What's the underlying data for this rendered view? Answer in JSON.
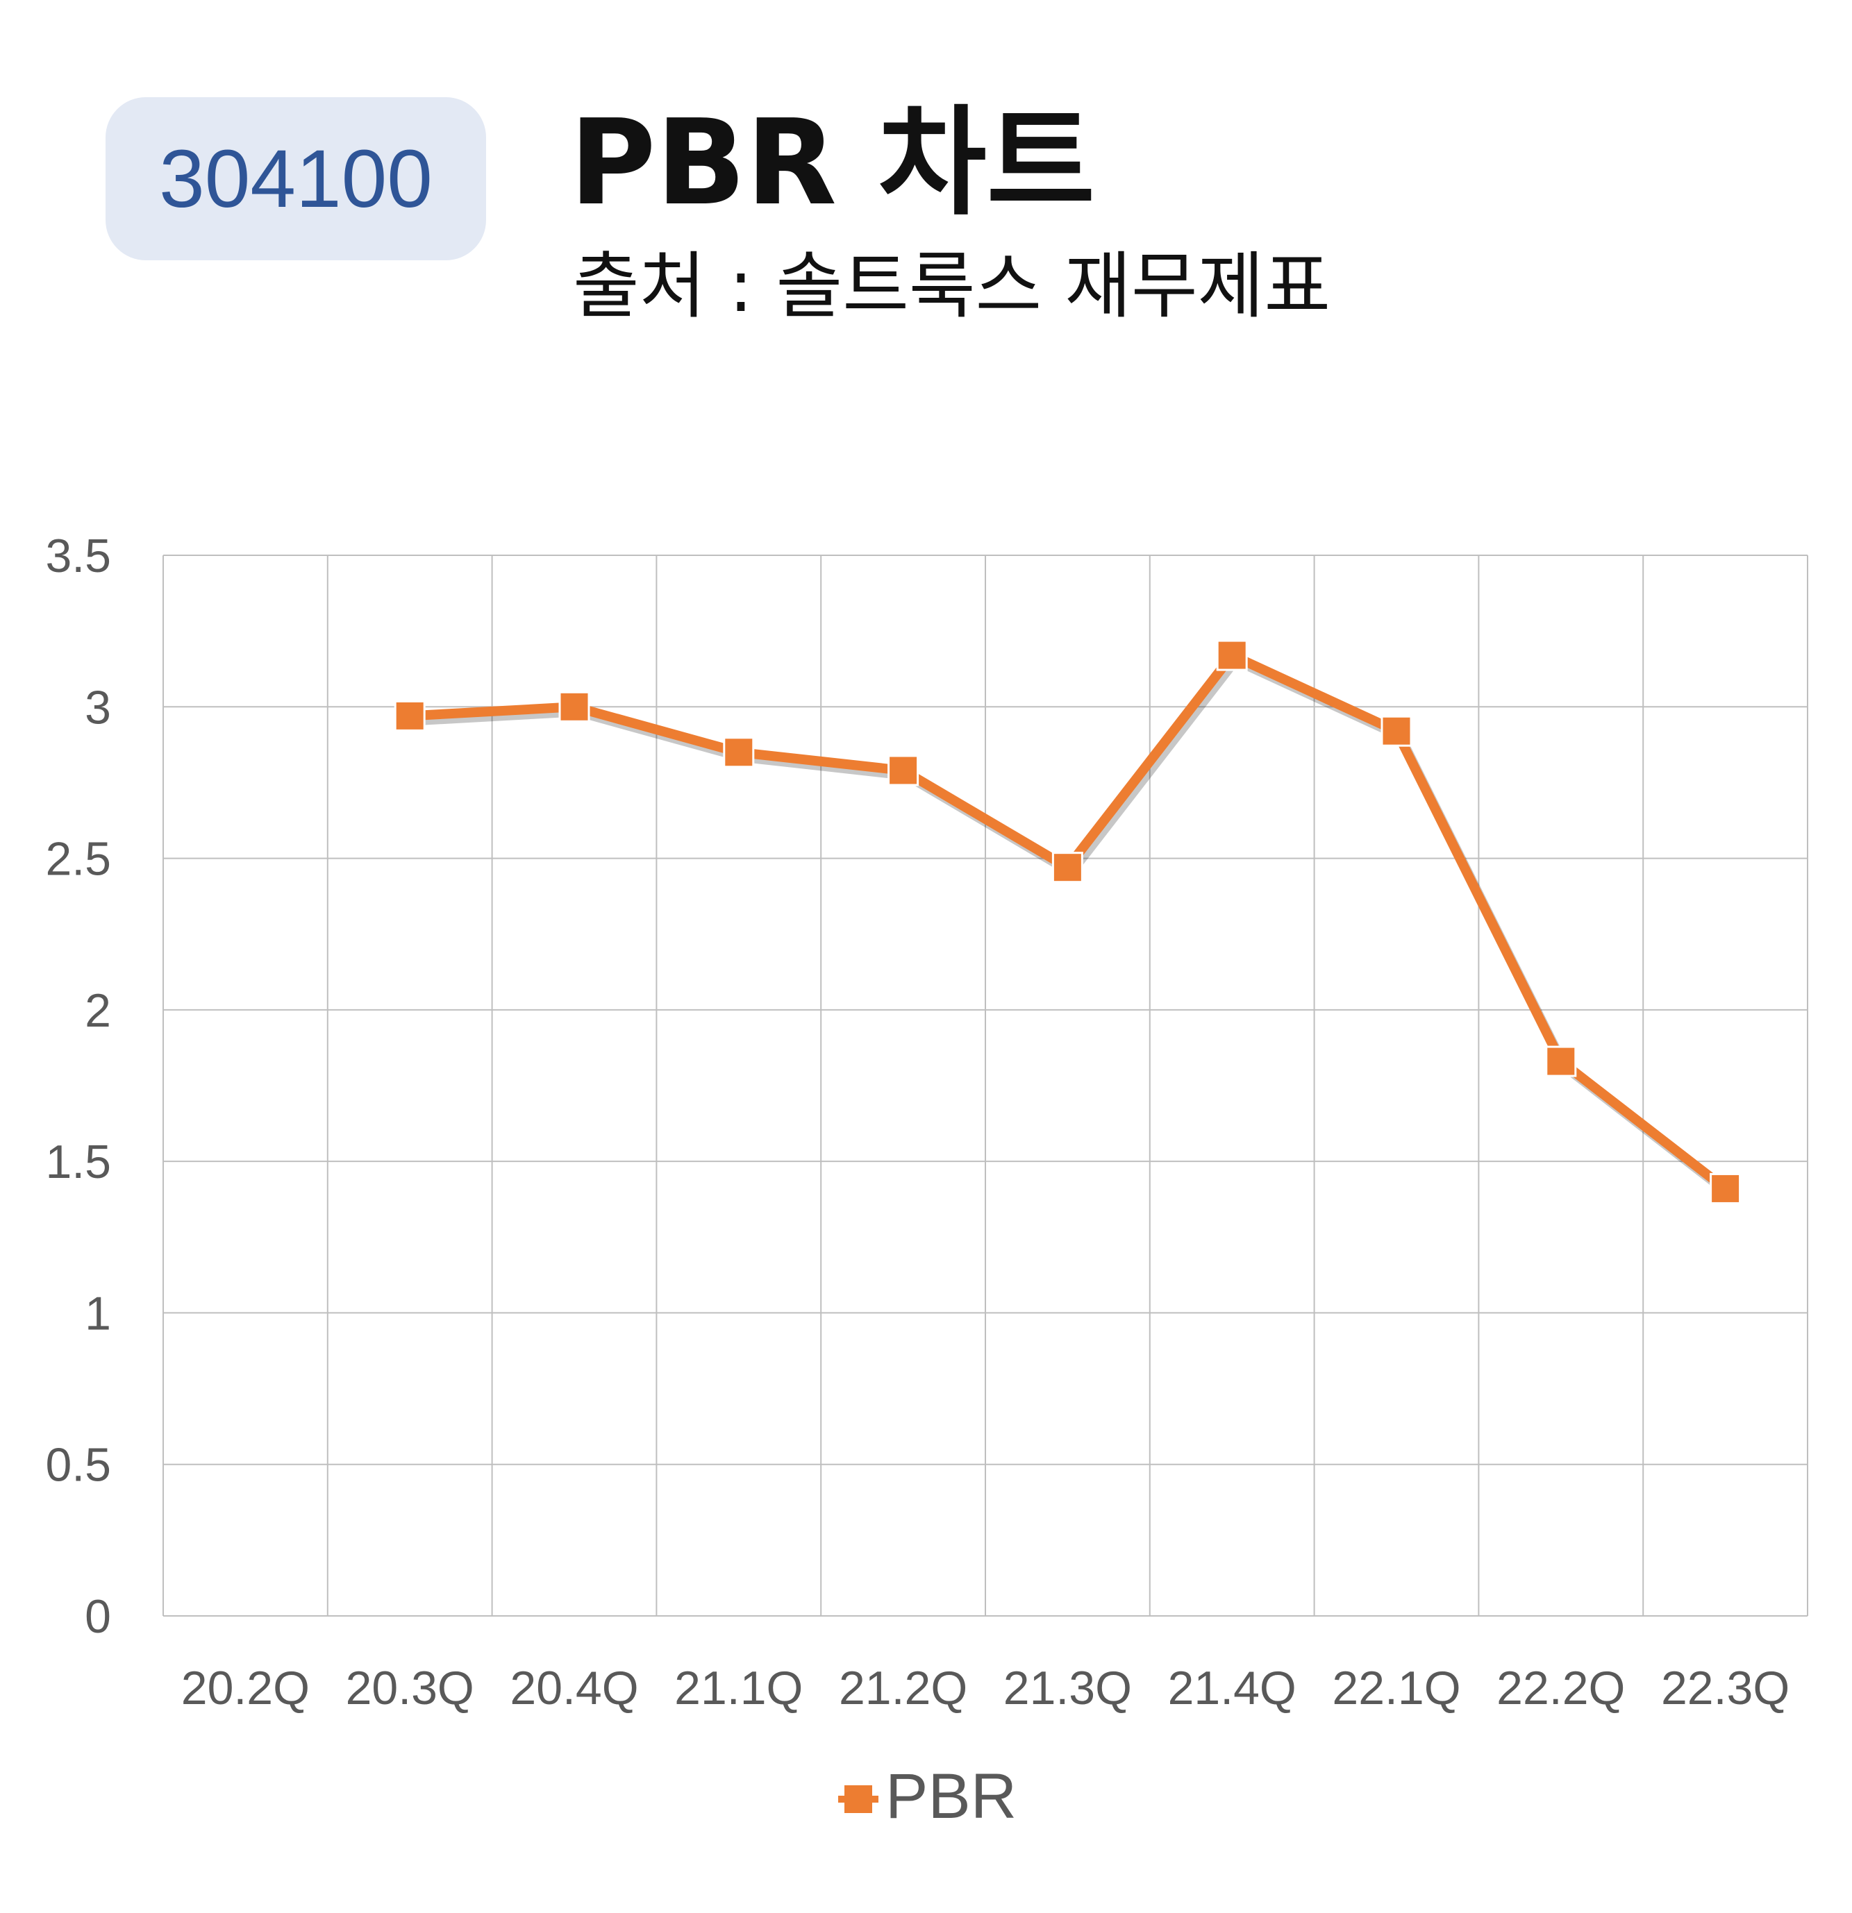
{
  "badge": {
    "code": "304100"
  },
  "header": {
    "title": "PBR 차트",
    "subtitle": "출처 : 솔트룩스 재무제표"
  },
  "chart_data": {
    "type": "line",
    "categories": [
      "20.2Q",
      "20.3Q",
      "20.4Q",
      "21.1Q",
      "21.2Q",
      "21.3Q",
      "21.4Q",
      "22.1Q",
      "22.2Q",
      "22.3Q"
    ],
    "series": [
      {
        "name": "PBR",
        "values": [
          null,
          2.97,
          3.0,
          2.85,
          2.79,
          2.47,
          3.17,
          2.92,
          1.83,
          1.41
        ],
        "color": "#ed7d31"
      }
    ],
    "y_ticks": [
      "0",
      "0.5",
      "1",
      "1.5",
      "2",
      "2.5",
      "3",
      "3.5"
    ],
    "ylim": [
      0,
      3.5
    ],
    "grid": true,
    "legend": "bottom",
    "colors": {
      "line": "#ed7d31",
      "grid": "#bfbfbf",
      "tick_text": "#595959"
    }
  }
}
